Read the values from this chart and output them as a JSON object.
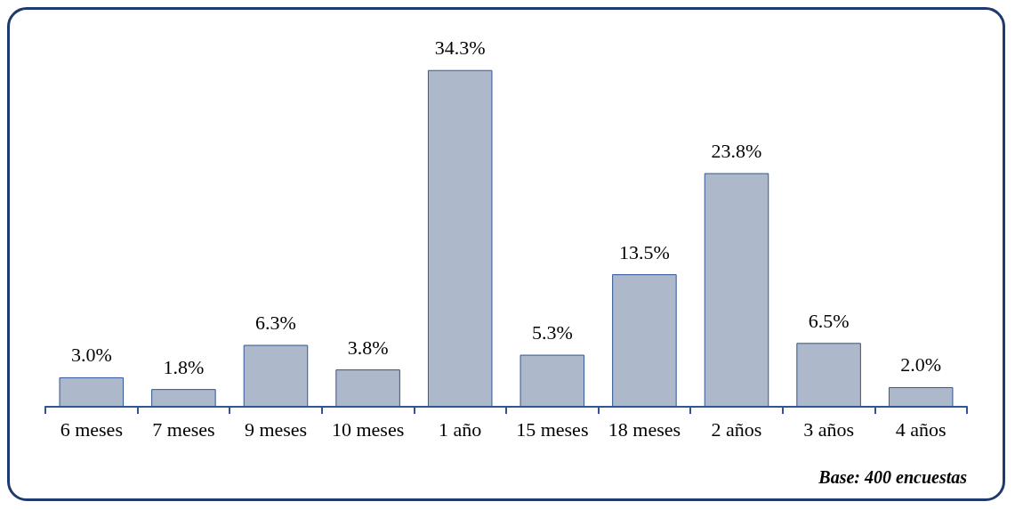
{
  "chart_data": {
    "type": "bar",
    "categories": [
      "6 meses",
      "7 meses",
      "9 meses",
      "10 meses",
      "1 año",
      "15 meses",
      "18 meses",
      "2 años",
      "3 años",
      "4 años"
    ],
    "values": [
      3.0,
      1.8,
      6.3,
      3.8,
      34.3,
      5.3,
      13.5,
      23.8,
      6.5,
      2.0
    ],
    "value_labels": [
      "3.0%",
      "1.8%",
      "6.3%",
      "3.8%",
      "34.3%",
      "5.3%",
      "13.5%",
      "23.8%",
      "6.5%",
      "2.0%"
    ],
    "color": "#adb9ca",
    "annotations": [
      "Base: 400 encuestas"
    ]
  }
}
